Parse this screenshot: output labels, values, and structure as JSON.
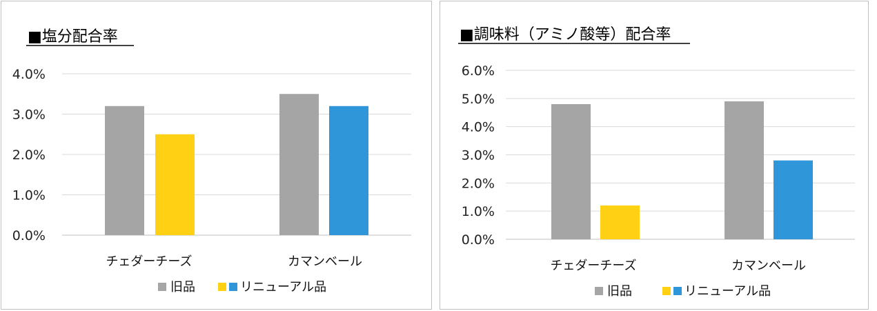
{
  "colors": {
    "old": "#a5a5a5",
    "renewal_salt": "#ffd014",
    "renewal_umami": "#2e96d9",
    "grid": "#d9d9d9",
    "border": "#bfbfbf"
  },
  "chart_data": [
    {
      "type": "bar",
      "title": "■塩分配合率",
      "categories": [
        "チェダーチーズ",
        "カマンベール"
      ],
      "series": [
        {
          "name": "旧品",
          "values": [
            3.2,
            3.5
          ]
        },
        {
          "name": "リニューアル品",
          "values": [
            2.5,
            3.2
          ]
        }
      ],
      "renewal_colors": [
        "#ffd014",
        "#2e96d9"
      ],
      "ylim": [
        0,
        4.0
      ],
      "yticks": [
        "0.0%",
        "1.0%",
        "2.0%",
        "3.0%",
        "4.0%"
      ],
      "grid": true,
      "legend_position": "bottom",
      "legend": {
        "old_label": "旧品",
        "renewal_label": "リニューアル品"
      }
    },
    {
      "type": "bar",
      "title": "■調味料（アミノ酸等）配合率",
      "categories": [
        "チェダーチーズ",
        "カマンベール"
      ],
      "series": [
        {
          "name": "旧品",
          "values": [
            4.8,
            4.9
          ]
        },
        {
          "name": "リニューアル品",
          "values": [
            1.2,
            2.8
          ]
        }
      ],
      "renewal_colors": [
        "#ffd014",
        "#2e96d9"
      ],
      "ylim": [
        0,
        6.0
      ],
      "yticks": [
        "0.0%",
        "1.0%",
        "2.0%",
        "3.0%",
        "4.0%",
        "5.0%",
        "6.0%"
      ],
      "grid": true,
      "legend_position": "bottom",
      "legend": {
        "old_label": "旧品",
        "renewal_label": "リニューアル品"
      }
    }
  ]
}
